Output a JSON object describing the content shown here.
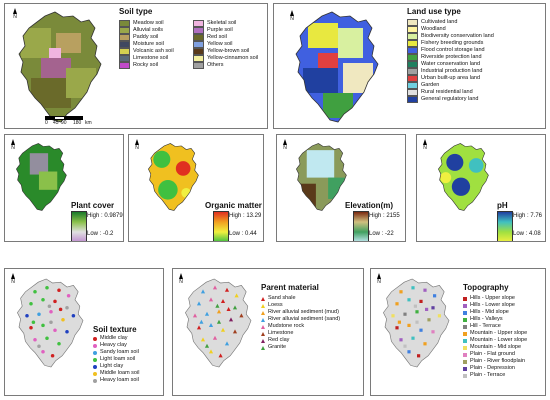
{
  "north_label": "N",
  "scale": {
    "ticks": [
      "0",
      "45",
      "90",
      "180"
    ],
    "unit": "km"
  },
  "panels": {
    "soil_type": {
      "title": "Soil type",
      "legend": [
        {
          "label": "Meadow soil",
          "color": "#7a8a3a"
        },
        {
          "label": "Alluvial soils",
          "color": "#9aa84a"
        },
        {
          "label": "Paddy soil",
          "color": "#b8a060"
        },
        {
          "label": "Moisture soil",
          "color": "#404860"
        },
        {
          "label": "Volcanic ash soil",
          "color": "#d4d050"
        },
        {
          "label": "Limestone soil",
          "color": "#5a6a7a"
        },
        {
          "label": "Rocky soil",
          "color": "#c04ac8"
        },
        {
          "label": "Skeletal soil",
          "color": "#f0b4e0"
        },
        {
          "label": "Purple soil",
          "color": "#b070c0"
        },
        {
          "label": "Red soil",
          "color": "#6a6a2a"
        },
        {
          "label": "Yellow soil",
          "color": "#80a0e0"
        },
        {
          "label": "Yellow-brown soil",
          "color": "#5a3a1a"
        },
        {
          "label": "Yellow-cinnamon soil",
          "color": "#f4f0a0"
        },
        {
          "label": "Others",
          "color": "#a0a0a0"
        }
      ]
    },
    "land_use": {
      "title": "Land use type",
      "legend": [
        {
          "label": "Cultivated land",
          "color": "#f0e8c0"
        },
        {
          "label": "Woodland",
          "color": "#fff4a0"
        },
        {
          "label": "Biodiversity conservation land",
          "color": "#d8f0a0"
        },
        {
          "label": "Fishery breeding grounds",
          "color": "#e8e840"
        },
        {
          "label": "Flood control storage land",
          "color": "#4060e0"
        },
        {
          "label": "Riverside protection land",
          "color": "#40a040"
        },
        {
          "label": "Water conservation land",
          "color": "#208060"
        },
        {
          "label": "Industrial  production land",
          "color": "#a0a0a0"
        },
        {
          "label": "Urban built-up area land",
          "color": "#e04040"
        },
        {
          "label": "Garden",
          "color": "#70d0e0"
        },
        {
          "label": "Rural residential land",
          "color": "#e0e0e0"
        },
        {
          "label": "General regulatory land",
          "color": "#2040a0"
        }
      ]
    },
    "plant_cover": {
      "title": "Plant cover",
      "high": "High : 0.9879",
      "low": "Low : -0.2",
      "ramp": [
        "#1a7a2a",
        "#8ac04a",
        "#e0e0e0",
        "#c090d0"
      ]
    },
    "organic_matter": {
      "title": "Organic matter",
      "high": "High : 13.29",
      "low": "Low : 0.44",
      "ramp": [
        "#e03020",
        "#f0a020",
        "#f0f040",
        "#40c040"
      ]
    },
    "elevation": {
      "title": "Elevation(m)",
      "high": "High : 2155",
      "low": "Low : -22",
      "ramp": [
        "#7a2a10",
        "#d0c080",
        "#40a060",
        "#c0e8f0"
      ]
    },
    "ph": {
      "title": "pH",
      "high": "High : 7.76",
      "low": "Low : 4.08",
      "ramp": [
        "#2040a0",
        "#40c0c0",
        "#a0e040",
        "#f0f040"
      ]
    },
    "soil_texture": {
      "title": "Soil texture",
      "legend": [
        {
          "label": "Middle clay",
          "color": "#d02020"
        },
        {
          "label": "Heavy clay",
          "color": "#e060c0"
        },
        {
          "label": "Sandy loam soil",
          "color": "#40a0e0"
        },
        {
          "label": "Light loam soil",
          "color": "#40c040"
        },
        {
          "label": "Light clay",
          "color": "#2040c0"
        },
        {
          "label": "Middle loam soil",
          "color": "#f0c020"
        },
        {
          "label": "Heavy loam soil",
          "color": "#a0a0a0"
        }
      ]
    },
    "parent_material": {
      "title": "Parent material",
      "legend": [
        {
          "label": "Sand shale",
          "color": "#d02020"
        },
        {
          "label": "Loess",
          "color": "#f0d020"
        },
        {
          "label": "River alluvial sediment (mud)",
          "color": "#f0a020"
        },
        {
          "label": "River alluvial sediment (sand)",
          "color": "#40a0e0"
        },
        {
          "label": "Mudstone rock",
          "color": "#e060a0"
        },
        {
          "label": "Limestone",
          "color": "#a04020"
        },
        {
          "label": "Red clay",
          "color": "#802060"
        },
        {
          "label": "Granite",
          "color": "#40a040"
        }
      ]
    },
    "topography": {
      "title": "Topography",
      "legend": [
        {
          "label": "Hills - Upper slope",
          "color": "#c02020"
        },
        {
          "label": "Hills - Lower slope",
          "color": "#a060c0"
        },
        {
          "label": "Hills - Mid slope",
          "color": "#4080e0"
        },
        {
          "label": "Hills - Valleys",
          "color": "#40b040"
        },
        {
          "label": "Hill - Terrace",
          "color": "#808080"
        },
        {
          "label": "Mountain - Upper slope",
          "color": "#f0a020"
        },
        {
          "label": "Mountain - Lower slope",
          "color": "#40c0c0"
        },
        {
          "label": "Mountain - Mid slope",
          "color": "#f0e060"
        },
        {
          "label": "Plain - Flat ground",
          "color": "#e080c0"
        },
        {
          "label": "Plain - River floodplain",
          "color": "#a0a060"
        },
        {
          "label": "Plain - Depression",
          "color": "#6040a0"
        },
        {
          "label": "Plain - Terrace",
          "color": "#c0c0c0"
        }
      ]
    }
  }
}
